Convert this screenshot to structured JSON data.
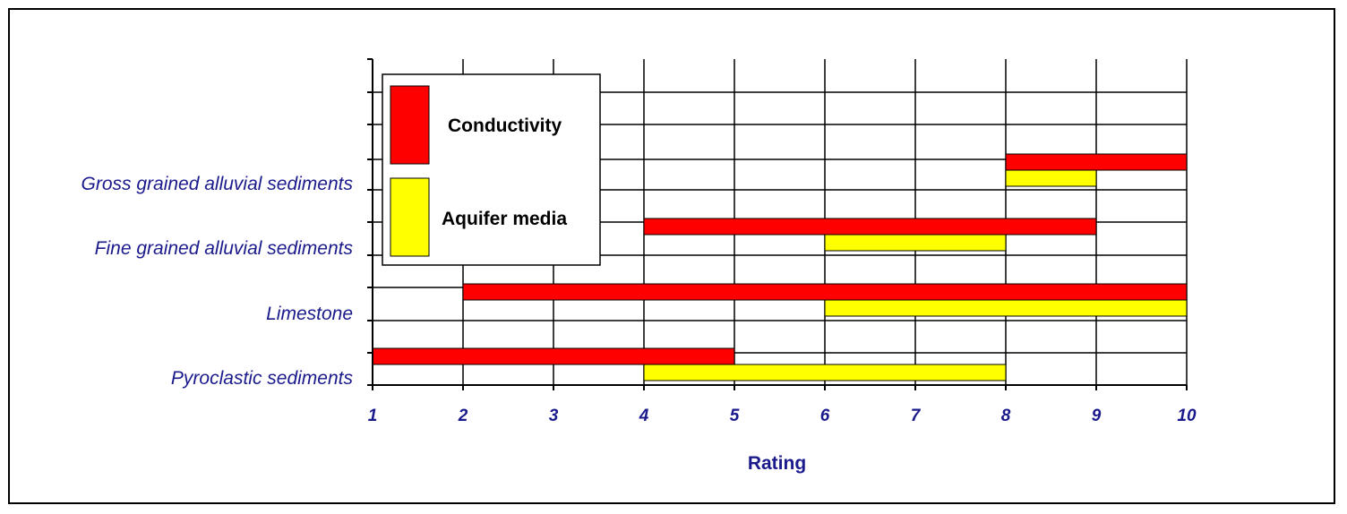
{
  "chart_data": {
    "type": "bar",
    "orientation": "horizontal",
    "title": "",
    "xlabel": "Rating",
    "ylabel": "",
    "xlim": [
      1,
      10
    ],
    "x_ticks": [
      1,
      2,
      3,
      4,
      5,
      6,
      7,
      8,
      9,
      10
    ],
    "grid": true,
    "legend_position": "top-left",
    "categories": [
      "Pyroclastic sediments",
      "Limestone",
      "Fine grained alluvial sediments",
      "Gross grained alluvial sediments"
    ],
    "series": [
      {
        "name": "Conductivity",
        "color": "#ff0000",
        "ranges": [
          [
            1,
            5
          ],
          [
            2,
            10
          ],
          [
            4,
            9
          ],
          [
            8,
            10
          ]
        ]
      },
      {
        "name": "Aquifer media",
        "color": "#ffff00",
        "ranges": [
          [
            4,
            8
          ],
          [
            6,
            10
          ],
          [
            6,
            8
          ],
          [
            8,
            9
          ]
        ]
      }
    ]
  }
}
